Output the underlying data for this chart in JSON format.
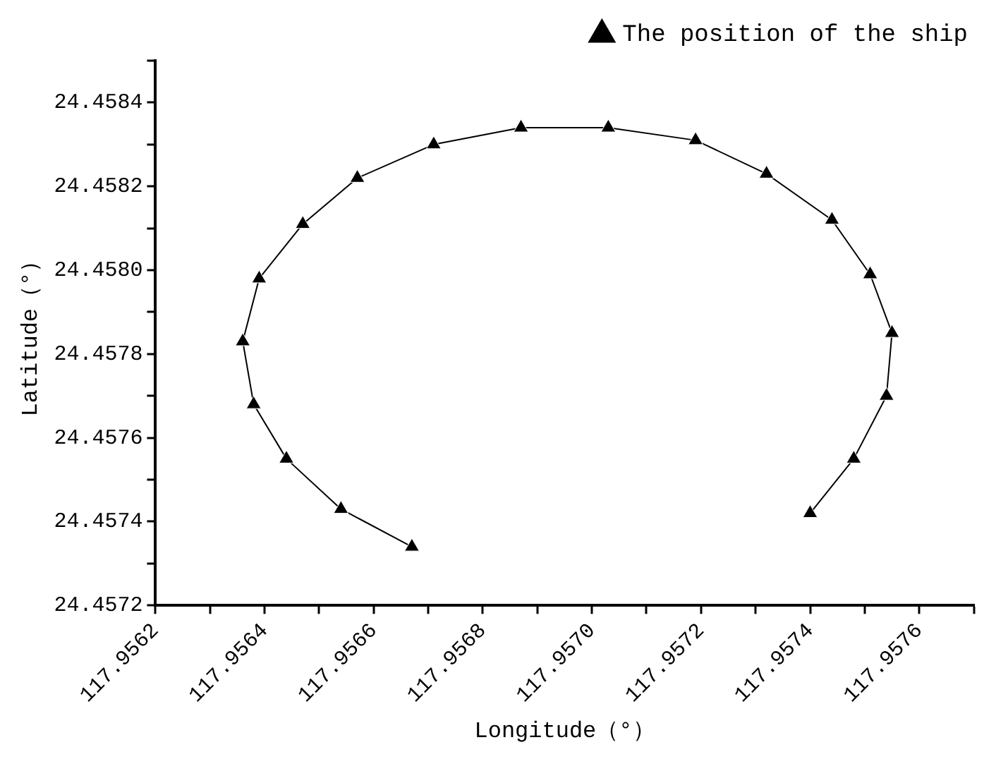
{
  "chart_data": {
    "type": "line",
    "xlabel": "Longitude（°）",
    "ylabel": "Latitude（°）",
    "series": [
      {
        "name": "The position of the ship",
        "color": "#000000",
        "x": [
          117.95667,
          117.95654,
          117.95644,
          117.95638,
          117.95636,
          117.95639,
          117.95647,
          117.95657,
          117.95671,
          117.95687,
          117.95703,
          117.95719,
          117.95732,
          117.95744,
          117.95751,
          117.95755,
          117.95754,
          117.95748,
          117.9574
        ],
        "values": [
          24.45734,
          24.45743,
          24.45755,
          24.45768,
          24.45783,
          24.45798,
          24.45811,
          24.45822,
          24.4583,
          24.45834,
          24.45834,
          24.45831,
          24.45823,
          24.45812,
          24.45799,
          24.45785,
          24.4577,
          24.45755,
          24.45742
        ]
      }
    ],
    "xlim": [
      117.9562,
      117.9577
    ],
    "xticks": [
      {
        "value": 117.9562,
        "label": "117.9562"
      },
      {
        "value": 117.9563,
        "label": null
      },
      {
        "value": 117.9564,
        "label": "117.9564"
      },
      {
        "value": 117.9565,
        "label": null
      },
      {
        "value": 117.9566,
        "label": "117.9566"
      },
      {
        "value": 117.9567,
        "label": null
      },
      {
        "value": 117.9568,
        "label": "117.9568"
      },
      {
        "value": 117.9569,
        "label": null
      },
      {
        "value": 117.957,
        "label": "117.9570"
      },
      {
        "value": 117.9571,
        "label": null
      },
      {
        "value": 117.9572,
        "label": "117.9572"
      },
      {
        "value": 117.9573,
        "label": null
      },
      {
        "value": 117.9574,
        "label": "117.9574"
      },
      {
        "value": 117.9575,
        "label": null
      },
      {
        "value": 117.9576,
        "label": "117.9576"
      },
      {
        "value": 117.9577,
        "label": null
      }
    ],
    "ylim": [
      24.4572,
      24.4585
    ],
    "yticks": [
      {
        "value": 24.4572,
        "label": "24.4572"
      },
      {
        "value": 24.4573,
        "label": null
      },
      {
        "value": 24.4574,
        "label": "24.4574"
      },
      {
        "value": 24.4575,
        "label": null
      },
      {
        "value": 24.4576,
        "label": "24.4576"
      },
      {
        "value": 24.4577,
        "label": null
      },
      {
        "value": 24.4578,
        "label": "24.4578"
      },
      {
        "value": 24.4579,
        "label": null
      },
      {
        "value": 24.458,
        "label": "24.4580"
      },
      {
        "value": 24.4581,
        "label": null
      },
      {
        "value": 24.4582,
        "label": "24.4582"
      },
      {
        "value": 24.4583,
        "label": null
      },
      {
        "value": 24.4584,
        "label": "24.4584"
      },
      {
        "value": 24.4585,
        "label": null
      }
    ],
    "grid": false,
    "legend": "top right",
    "marker": "triangle",
    "line_style": "solid"
  }
}
